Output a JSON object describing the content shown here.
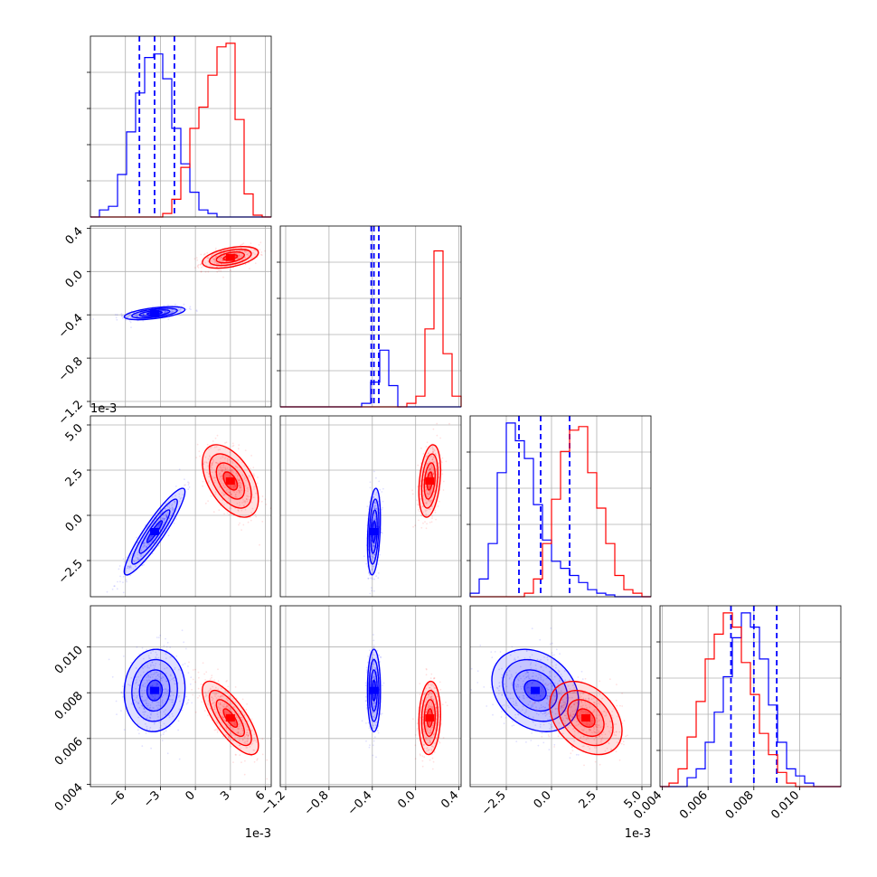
{
  "chart_data": {
    "type": "corner",
    "grid": true,
    "parameters": [
      {
        "offset_label": "1e-3",
        "ticks": [
          -6,
          -3,
          0,
          3,
          6
        ],
        "tick_labels": [
          "−6",
          "−3",
          "0",
          "3",
          "6"
        ],
        "range": [
          -9,
          6.5
        ]
      },
      {
        "offset_label": "",
        "ticks": [
          -1.2,
          -0.8,
          -0.4,
          0.0,
          0.4
        ],
        "tick_labels": [
          "−1.2",
          "−0.8",
          "−0.4",
          "0.0",
          "0.4"
        ],
        "range": [
          -1.25,
          0.42
        ]
      },
      {
        "offset_label": "1e-3",
        "ticks": [
          -2.5,
          0.0,
          2.5,
          5.0
        ],
        "tick_labels": [
          "−2.5",
          "0.0",
          "2.5",
          "5.0"
        ],
        "range": [
          -4.5,
          5.5
        ]
      },
      {
        "offset_label": "",
        "ticks": [
          0.004,
          0.006,
          0.008,
          0.01
        ],
        "tick_labels": [
          "0.004",
          "0.006",
          "0.008",
          "0.010"
        ],
        "range": [
          0.0039,
          0.0118
        ]
      }
    ],
    "series": [
      {
        "color": "#0000ff",
        "means": [
          -3.5,
          -0.385,
          -0.9,
          0.0081
        ],
        "sigmas": [
          1.3,
          0.03,
          1.2,
          0.0009
        ],
        "quantiles": [
          [
            -4.8,
            -3.5,
            -1.8
          ],
          [
            -0.41,
            -0.385,
            -0.34
          ],
          [
            -1.8,
            -0.6,
            1.0
          ],
          [
            0.007,
            0.008,
            0.009
          ]
        ],
        "histograms": [
          [
            0,
            0.04,
            0.06,
            0.24,
            0.48,
            0.7,
            0.9,
            0.92,
            0.78,
            0.5,
            0.3,
            0.14,
            0.04,
            0.02,
            0,
            0,
            0,
            0,
            0,
            0
          ],
          [
            0,
            0,
            0,
            0,
            0,
            0,
            0,
            0,
            0,
            0.02,
            0.14,
            0.32,
            0.12,
            0,
            0,
            0,
            0,
            0,
            0,
            0
          ],
          [
            0.02,
            0.1,
            0.3,
            0.7,
            0.98,
            0.88,
            0.78,
            0.52,
            0.32,
            0.2,
            0.16,
            0.12,
            0.08,
            0.04,
            0.02,
            0.01,
            0,
            0,
            0,
            0
          ],
          [
            0,
            0,
            0,
            0.05,
            0.1,
            0.25,
            0.42,
            0.62,
            0.84,
            0.98,
            0.9,
            0.72,
            0.46,
            0.25,
            0.1,
            0.06,
            0.02,
            0,
            0,
            0
          ]
        ]
      },
      {
        "color": "#ff0000",
        "means": [
          3.0,
          0.13,
          1.9,
          0.0069
        ],
        "sigmas": [
          1.2,
          0.05,
          1.0,
          0.0008
        ],
        "histograms": [
          [
            0,
            0,
            0,
            0,
            0,
            0,
            0,
            0,
            0.02,
            0.1,
            0.28,
            0.5,
            0.62,
            0.8,
            0.96,
            0.98,
            0.55,
            0.13,
            0.01,
            0
          ],
          [
            0,
            0,
            0,
            0,
            0,
            0,
            0,
            0,
            0,
            0,
            0,
            0,
            0,
            0,
            0.02,
            0.06,
            0.44,
            0.88,
            0.3,
            0.06
          ],
          [
            0,
            0,
            0,
            0,
            0,
            0,
            0.02,
            0.1,
            0.3,
            0.55,
            0.82,
            0.94,
            0.96,
            0.7,
            0.5,
            0.3,
            0.12,
            0.04,
            0.02,
            0
          ],
          [
            0,
            0.02,
            0.1,
            0.28,
            0.48,
            0.72,
            0.86,
            0.98,
            0.9,
            0.7,
            0.52,
            0.3,
            0.18,
            0.08,
            0.02,
            0,
            0,
            0,
            0,
            0
          ]
        ]
      }
    ],
    "correlations": {
      "1-0": [
        0.55,
        0.45
      ],
      "2-0": [
        0.92,
        -0.5
      ],
      "2-1": [
        0.3,
        0.3
      ],
      "3-0": [
        0.05,
        -0.75
      ],
      "3-1": [
        0.0,
        0.1
      ],
      "3-2": [
        -0.25,
        -0.35
      ]
    }
  }
}
